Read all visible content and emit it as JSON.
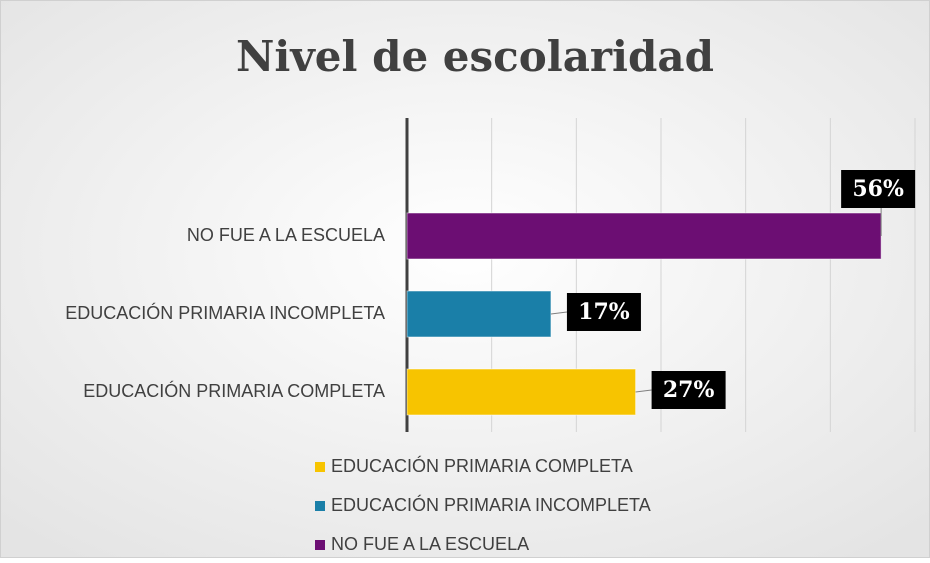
{
  "chart_data": {
    "type": "barh",
    "title": "Nivel de escolaridad",
    "categories": [
      "EDUCACIÓN PRIMARIA COMPLETA",
      "EDUCACIÓN PRIMARIA INCOMPLETA",
      "NO FUE A LA ESCUELA"
    ],
    "values": [
      27,
      17,
      56
    ],
    "value_labels": [
      "27%",
      "17%",
      "56%"
    ],
    "colors": [
      "#f7c400",
      "#1a7fa8",
      "#6c0e73"
    ],
    "xlim": [
      0,
      60
    ],
    "xticks": [
      0,
      10,
      20,
      30,
      40,
      50,
      60
    ],
    "grid": true,
    "legend": "bottom"
  }
}
